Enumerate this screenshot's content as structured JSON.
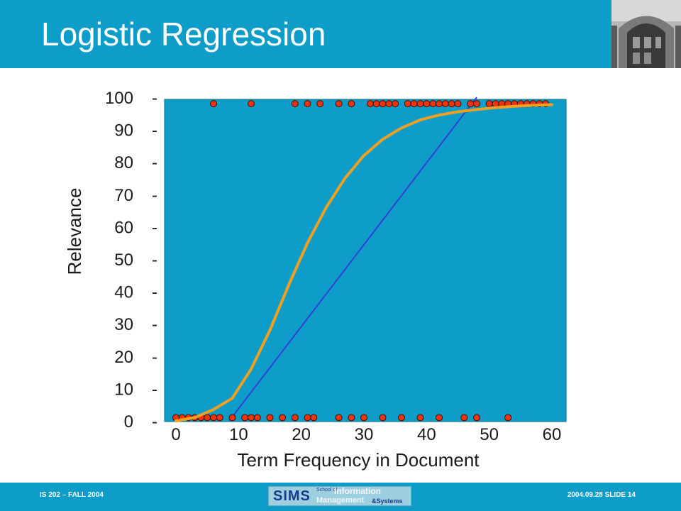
{
  "slide": {
    "title": "Logistic Regression",
    "footer_left": "IS 202 – FALL 2004",
    "footer_right": "2004.09.28  SLIDE 14"
  },
  "logo": {
    "main": "SIMS",
    "school": "School of",
    "information": "Information",
    "management": "Management",
    "systems": "&Systems"
  },
  "colors": {
    "header": "#0e9cc8",
    "plot_background": "#0e9cc8",
    "logistic_curve": "#f0a020",
    "linear_fit": "#3040d8",
    "points": "#ee3311"
  },
  "chart_data": {
    "type": "scatter",
    "xlabel": "Term Frequency in Document",
    "ylabel": "Relevance",
    "xlim": [
      0,
      60
    ],
    "ylim": [
      0,
      100
    ],
    "x_ticks": [
      0,
      10,
      20,
      30,
      40,
      50,
      60
    ],
    "y_ticks": [
      0,
      10,
      20,
      30,
      40,
      50,
      60,
      70,
      80,
      90,
      100
    ],
    "grid": false,
    "legend": "none",
    "points_relevant": [
      6,
      12,
      19,
      21,
      23,
      26,
      28,
      31,
      32,
      33,
      34,
      35,
      37,
      38,
      39,
      40,
      41,
      42,
      43,
      44,
      45,
      47,
      48,
      50,
      51,
      52,
      53,
      54,
      55,
      56,
      57,
      58,
      59
    ],
    "points_nonrelevant": [
      0,
      1,
      2,
      3,
      4,
      5,
      6,
      7,
      9,
      11,
      12,
      13,
      15,
      17,
      19,
      21,
      22,
      26,
      28,
      30,
      33,
      36,
      39,
      42,
      46,
      48,
      53
    ],
    "relevant_value": 98,
    "nonrelevant_value": 1,
    "linear_fit": [
      [
        8.5,
        0
      ],
      [
        48,
        100
      ]
    ],
    "logistic_curve": [
      [
        0,
        0
      ],
      [
        3,
        1
      ],
      [
        6,
        3.5
      ],
      [
        9,
        7
      ],
      [
        12,
        16
      ],
      [
        15,
        28
      ],
      [
        18,
        42
      ],
      [
        21,
        55
      ],
      [
        24,
        66
      ],
      [
        27,
        75
      ],
      [
        30,
        82
      ],
      [
        33,
        87
      ],
      [
        36,
        90.5
      ],
      [
        39,
        93
      ],
      [
        42,
        94.5
      ],
      [
        45,
        95.5
      ],
      [
        48,
        96.2
      ],
      [
        51,
        96.8
      ],
      [
        54,
        97.2
      ],
      [
        57,
        97.5
      ],
      [
        60,
        97.7
      ]
    ]
  }
}
